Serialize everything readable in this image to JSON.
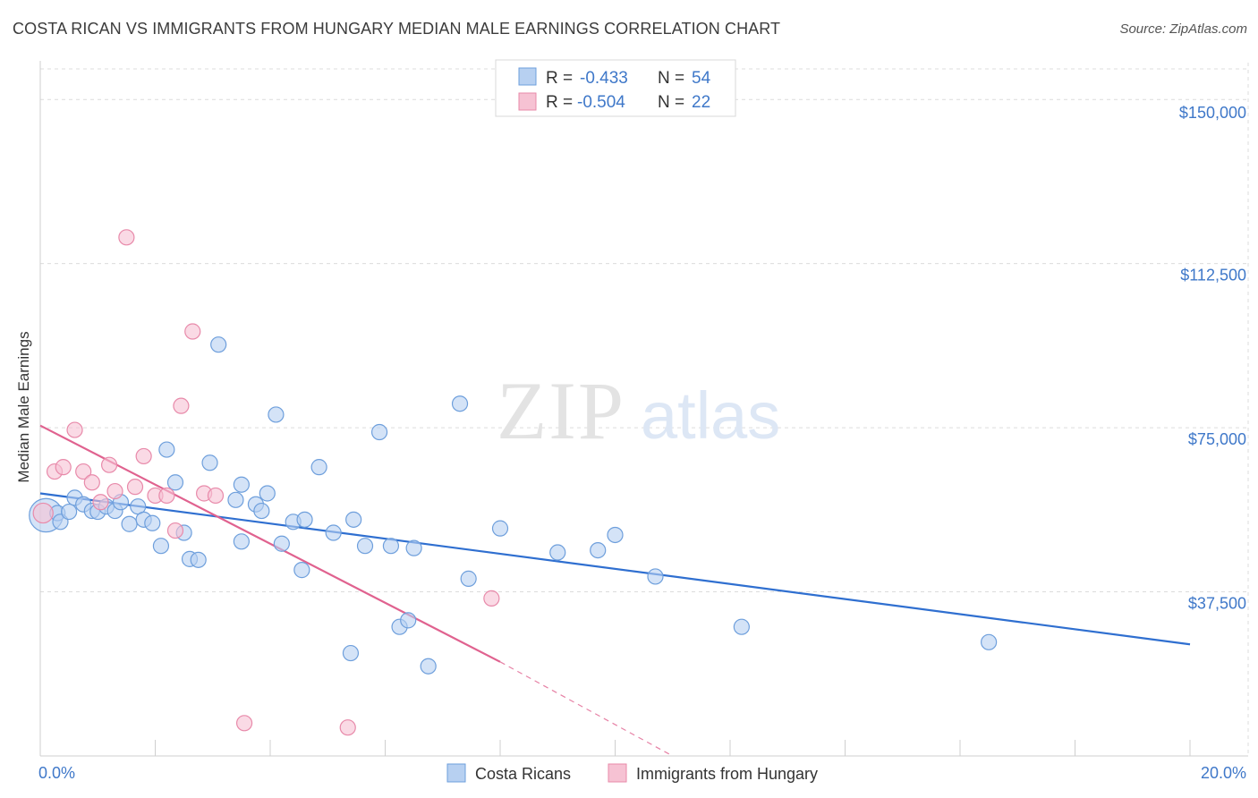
{
  "title": "COSTA RICAN VS IMMIGRANTS FROM HUNGARY MEDIAN MALE EARNINGS CORRELATION CHART",
  "source": "Source: ZipAtlas.com",
  "watermark": {
    "zip": "ZIP",
    "atlas": "atlas"
  },
  "colors": {
    "blue_fill": "#b7d0f1",
    "blue_stroke": "#6e9fdc",
    "blue_line": "#2f6fd0",
    "pink_fill": "#f6c2d3",
    "pink_stroke": "#e88aaa",
    "pink_line": "#e0628f",
    "axis_text": "#3f78c9",
    "grid": "#dcdcdc"
  },
  "legend": {
    "rows": [
      {
        "r_label": "R =",
        "r_value": "-0.433",
        "n_label": "N =",
        "n_value": "54",
        "series": "blue"
      },
      {
        "r_label": "R =",
        "r_value": "-0.504",
        "n_label": "N =",
        "n_value": "22",
        "series": "pink"
      }
    ]
  },
  "bottom_legend": [
    {
      "label": "Costa Ricans",
      "series": "blue"
    },
    {
      "label": "Immigrants from Hungary",
      "series": "pink"
    }
  ],
  "chart_data": {
    "type": "scatter",
    "title": "COSTA RICAN VS IMMIGRANTS FROM HUNGARY MEDIAN MALE EARNINGS CORRELATION CHART",
    "xlabel": "",
    "ylabel": "Median Male Earnings",
    "xlim": [
      0,
      20
    ],
    "ylim": [
      0,
      157000
    ],
    "x_tick_labels": [
      {
        "value": 0,
        "label": "0.0%"
      },
      {
        "value": 20,
        "label": "20.0%"
      }
    ],
    "x_minor_ticks": [
      0,
      2,
      4,
      6,
      8,
      10,
      12,
      14,
      16,
      18,
      20
    ],
    "y_ticks": [
      {
        "value": 37500,
        "label": "$37,500"
      },
      {
        "value": 75000,
        "label": "$75,000"
      },
      {
        "value": 112500,
        "label": "$112,500"
      },
      {
        "value": 150000,
        "label": "$150,000"
      }
    ],
    "grid": true,
    "series": [
      {
        "name": "Costa Ricans",
        "color": "blue",
        "points": [
          [
            0.1,
            55000,
            2.2
          ],
          [
            0.3,
            55500,
            1
          ],
          [
            0.35,
            53500,
            1
          ],
          [
            0.5,
            55800,
            1
          ],
          [
            0.6,
            59000,
            1
          ],
          [
            0.75,
            57500,
            1
          ],
          [
            0.9,
            56000,
            1
          ],
          [
            1.0,
            55800,
            1
          ],
          [
            1.15,
            57000,
            1
          ],
          [
            1.3,
            56000,
            1
          ],
          [
            1.4,
            58000,
            1
          ],
          [
            1.55,
            53000,
            1
          ],
          [
            1.7,
            57000,
            1
          ],
          [
            1.8,
            54000,
            1
          ],
          [
            1.95,
            53200,
            1
          ],
          [
            2.1,
            48000,
            1
          ],
          [
            2.2,
            70000,
            1
          ],
          [
            2.35,
            62500,
            1
          ],
          [
            2.5,
            51000,
            1
          ],
          [
            2.6,
            45000,
            1
          ],
          [
            2.75,
            44800,
            1
          ],
          [
            2.95,
            67000,
            1
          ],
          [
            3.1,
            94000,
            1
          ],
          [
            3.4,
            58500,
            1
          ],
          [
            3.5,
            62000,
            1
          ],
          [
            3.5,
            49000,
            1
          ],
          [
            3.75,
            57500,
            1
          ],
          [
            3.85,
            56000,
            1
          ],
          [
            3.95,
            60000,
            1
          ],
          [
            4.1,
            78000,
            1
          ],
          [
            4.2,
            48500,
            1
          ],
          [
            4.4,
            53500,
            1
          ],
          [
            4.55,
            42500,
            1
          ],
          [
            4.6,
            54000,
            1
          ],
          [
            4.85,
            66000,
            1
          ],
          [
            5.1,
            51000,
            1
          ],
          [
            5.4,
            23500,
            1
          ],
          [
            5.45,
            54000,
            1
          ],
          [
            5.65,
            48000,
            1
          ],
          [
            5.9,
            74000,
            1
          ],
          [
            6.1,
            48000,
            1
          ],
          [
            6.25,
            29500,
            1
          ],
          [
            6.4,
            31000,
            1
          ],
          [
            6.5,
            47500,
            1
          ],
          [
            6.75,
            20500,
            1
          ],
          [
            7.3,
            80500,
            1
          ],
          [
            7.45,
            40500,
            1
          ],
          [
            8.0,
            52000,
            1
          ],
          [
            9.0,
            46500,
            1
          ],
          [
            9.7,
            47000,
            1
          ],
          [
            10.0,
            50500,
            1
          ],
          [
            10.7,
            41000,
            1
          ],
          [
            12.2,
            29500,
            1
          ],
          [
            16.5,
            26000,
            1
          ]
        ],
        "trend": {
          "x0": 0,
          "y0": 60000,
          "x1": 20,
          "y1": 25500
        }
      },
      {
        "name": "Immigrants from Hungary",
        "color": "pink",
        "points": [
          [
            0.05,
            55500,
            1.3
          ],
          [
            0.25,
            65000,
            1
          ],
          [
            0.4,
            66000,
            1
          ],
          [
            0.6,
            74500,
            1
          ],
          [
            0.75,
            65000,
            1
          ],
          [
            0.9,
            62500,
            1
          ],
          [
            1.05,
            58000,
            1
          ],
          [
            1.2,
            66500,
            1
          ],
          [
            1.3,
            60500,
            1
          ],
          [
            1.5,
            118500,
            1
          ],
          [
            1.65,
            61500,
            1
          ],
          [
            1.8,
            68500,
            1
          ],
          [
            2.0,
            59500,
            1
          ],
          [
            2.2,
            59500,
            1
          ],
          [
            2.35,
            51500,
            1
          ],
          [
            2.45,
            80000,
            1
          ],
          [
            2.65,
            97000,
            1
          ],
          [
            2.85,
            60000,
            1
          ],
          [
            3.05,
            59500,
            1
          ],
          [
            3.55,
            7500,
            1
          ],
          [
            5.35,
            6500,
            1
          ],
          [
            7.85,
            36000,
            1
          ]
        ],
        "trend": {
          "x0": 0,
          "y0": 75500,
          "x1": 8.0,
          "y1": 21500
        },
        "trend_dashed": {
          "x0": 8.0,
          "y0": 21500,
          "x1": 11.0,
          "y1": 0
        }
      }
    ]
  }
}
